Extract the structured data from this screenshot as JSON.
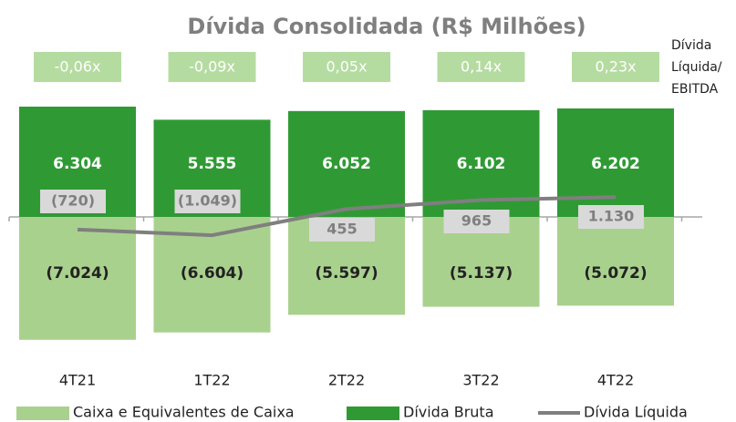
{
  "chart_data": {
    "type": "bar",
    "title": "Dívida Consolidada (R$ Milhões)",
    "categories": [
      "4T21",
      "1T22",
      "2T22",
      "3T22",
      "4T22"
    ],
    "series": [
      {
        "name": "Caixa e Equivalentes de Caixa",
        "type": "bar",
        "color": "#a9d18e",
        "values": [
          -7024,
          -6604,
          -5597,
          -5137,
          -5072
        ],
        "value_labels": [
          "(7.024)",
          "(6.604)",
          "(5.597)",
          "(5.137)",
          "(5.072)"
        ]
      },
      {
        "name": "Dívida Bruta",
        "type": "bar",
        "color": "#2f9a34",
        "values": [
          6304,
          5555,
          6052,
          6102,
          6202
        ],
        "value_labels": [
          "6.304",
          "5.555",
          "6.052",
          "6.102",
          "6.202"
        ]
      },
      {
        "name": "Dívida Líquida",
        "type": "line",
        "color": "#7f7f7f",
        "values": [
          -720,
          -1049,
          455,
          965,
          1130
        ],
        "value_labels": [
          "(720)",
          "(1.049)",
          "455",
          "965",
          "1.130"
        ]
      }
    ],
    "ratio": {
      "name": [
        "Dívida",
        "Líquida/",
        "EBITDA"
      ],
      "values": [
        -0.06,
        -0.09,
        0.05,
        0.14,
        0.23
      ],
      "value_labels": [
        "-0,06x",
        "-0,09x",
        "0,05x",
        "0,14x",
        "0,23x"
      ]
    }
  }
}
